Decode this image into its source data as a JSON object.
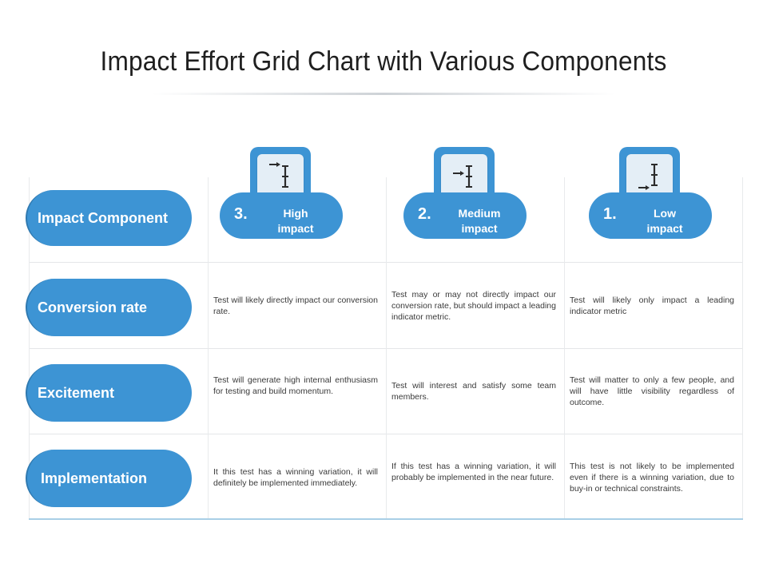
{
  "title": "Impact Effort Grid Chart with Various Components",
  "accent_color": "#3d94d4",
  "columns": [
    {
      "number": "3.",
      "label_line1": "High",
      "label_line2": "impact",
      "icon": "arrow-into-bar-icon"
    },
    {
      "number": "2.",
      "label_line1": "Medium",
      "label_line2": "impact",
      "icon": "arrow-to-bar-icon"
    },
    {
      "number": "1.",
      "label_line1": "Low",
      "label_line2": "impact",
      "icon": "arrow-below-bar-icon"
    }
  ],
  "rows": [
    {
      "label": "Impact Component"
    },
    {
      "label": "Conversion rate",
      "cells": [
        "Test will likely directly impact our conversion rate.",
        "Test may or may not directly impact our conversion rate, but should impact a leading indicator metric.",
        "Test will likely only impact a leading indicator metric"
      ]
    },
    {
      "label": "Excitement",
      "cells": [
        "Test will generate high internal enthusiasm for testing and build momentum.",
        "Test will interest and satisfy some team members.",
        "Test will matter to only a few people, and will have little visibility regardless of outcome."
      ]
    },
    {
      "label": "Implementation",
      "cells": [
        "It this test has a winning variation, it will definitely be implemented immediately.",
        "If this test has a winning variation, it will probably be implemented in the near future.",
        "This test is not likely to be implemented even if there is a winning variation, due to buy-in or technical constraints."
      ]
    }
  ]
}
